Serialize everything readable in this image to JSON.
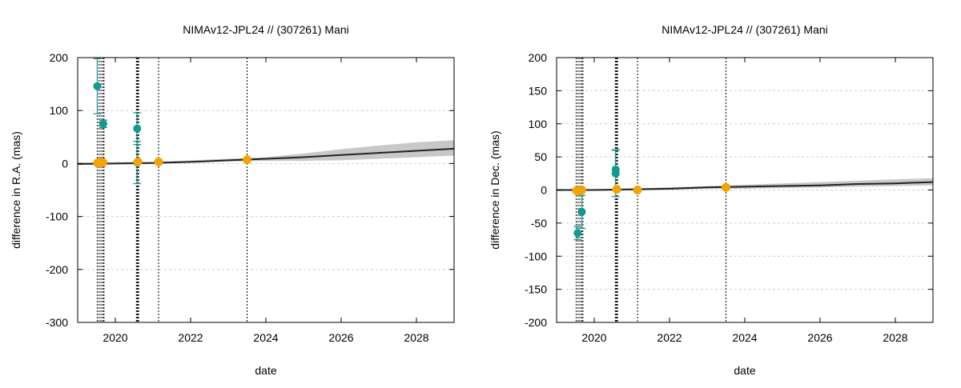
{
  "chart_data": [
    {
      "type": "scatter",
      "title": "NIMAv12-JPL24 // (307261) Mani",
      "xlabel": "date",
      "ylabel": "difference in R.A. (mas)",
      "xlim": [
        2019.0,
        2029.0
      ],
      "ylim": [
        -300,
        200
      ],
      "xticks": [
        2020,
        2022,
        2024,
        2026,
        2028
      ],
      "yticks": [
        -300,
        -200,
        -100,
        0,
        100,
        200
      ],
      "grid": true,
      "legend": "none",
      "colors": {
        "obs": "#14998f",
        "gaia": "#f5a300",
        "band": "#c8c8c8",
        "line": "#222222"
      },
      "vlines": [
        2019.52,
        2019.57,
        2019.62,
        2019.67,
        2019.7,
        2020.56,
        2020.58,
        2020.6,
        2020.62,
        2021.15,
        2023.5
      ],
      "band": [
        {
          "x": 2019.0,
          "lo": -2,
          "hi": 2
        },
        {
          "x": 2021.0,
          "lo": -1,
          "hi": 3
        },
        {
          "x": 2023.0,
          "lo": 4,
          "hi": 9
        },
        {
          "x": 2024.0,
          "lo": 5,
          "hi": 12
        },
        {
          "x": 2025.0,
          "lo": 5,
          "hi": 19
        },
        {
          "x": 2026.0,
          "lo": 6,
          "hi": 27
        },
        {
          "x": 2027.0,
          "lo": 9,
          "hi": 34
        },
        {
          "x": 2028.0,
          "lo": 12,
          "hi": 40
        },
        {
          "x": 2029.0,
          "lo": 15,
          "hi": 44
        }
      ],
      "line": [
        {
          "x": 2019.0,
          "y": -1
        },
        {
          "x": 2020.0,
          "y": 0
        },
        {
          "x": 2021.0,
          "y": 1
        },
        {
          "x": 2022.0,
          "y": 3
        },
        {
          "x": 2023.0,
          "y": 6
        },
        {
          "x": 2024.0,
          "y": 9
        },
        {
          "x": 2025.0,
          "y": 12
        },
        {
          "x": 2026.0,
          "y": 16
        },
        {
          "x": 2027.0,
          "y": 20
        },
        {
          "x": 2028.0,
          "y": 24
        },
        {
          "x": 2029.0,
          "y": 28
        }
      ],
      "observations": [
        {
          "x": 2019.52,
          "y": 146,
          "err": 52
        },
        {
          "x": 2019.68,
          "y": 75,
          "err": 7
        },
        {
          "x": 2020.58,
          "y": 66,
          "err": 30
        },
        {
          "x": 2020.58,
          "y": 2,
          "err": 40
        }
      ],
      "gaia_points": [
        {
          "x": 2019.53,
          "y": 1
        },
        {
          "x": 2019.57,
          "y": 2
        },
        {
          "x": 2019.62,
          "y": 2
        },
        {
          "x": 2019.67,
          "y": 2
        },
        {
          "x": 2020.6,
          "y": 3
        },
        {
          "x": 2021.15,
          "y": 3
        },
        {
          "x": 2023.5,
          "y": 7
        }
      ]
    },
    {
      "type": "scatter",
      "title": "NIMAv12-JPL24 // (307261) Mani",
      "xlabel": "date",
      "ylabel": "difference in Dec. (mas)",
      "xlim": [
        2019.0,
        2029.0
      ],
      "ylim": [
        -200,
        200
      ],
      "xticks": [
        2020,
        2022,
        2024,
        2026,
        2028
      ],
      "yticks": [
        -200,
        -150,
        -100,
        -50,
        0,
        50,
        100,
        150,
        200
      ],
      "grid": true,
      "legend": "none",
      "colors": {
        "obs": "#14998f",
        "gaia": "#f5a300",
        "band": "#c8c8c8",
        "line": "#222222"
      },
      "vlines": [
        2019.52,
        2019.57,
        2019.62,
        2019.67,
        2019.7,
        2020.56,
        2020.58,
        2020.6,
        2020.62,
        2021.15,
        2023.5
      ],
      "band": [
        {
          "x": 2019.0,
          "lo": -1,
          "hi": 1
        },
        {
          "x": 2021.0,
          "lo": -1,
          "hi": 2
        },
        {
          "x": 2023.0,
          "lo": 2,
          "hi": 6
        },
        {
          "x": 2024.0,
          "lo": 2,
          "hi": 8
        },
        {
          "x": 2025.0,
          "lo": 3,
          "hi": 10
        },
        {
          "x": 2026.0,
          "lo": 4,
          "hi": 12
        },
        {
          "x": 2027.0,
          "lo": 5,
          "hi": 14
        },
        {
          "x": 2028.0,
          "lo": 6,
          "hi": 16
        },
        {
          "x": 2029.0,
          "lo": 7,
          "hi": 18
        }
      ],
      "line": [
        {
          "x": 2019.0,
          "y": 0
        },
        {
          "x": 2020.0,
          "y": 0
        },
        {
          "x": 2021.0,
          "y": 1
        },
        {
          "x": 2022.0,
          "y": 2
        },
        {
          "x": 2023.0,
          "y": 4
        },
        {
          "x": 2024.0,
          "y": 5
        },
        {
          "x": 2025.0,
          "y": 6
        },
        {
          "x": 2026.0,
          "y": 7
        },
        {
          "x": 2027.0,
          "y": 9
        },
        {
          "x": 2028.0,
          "y": 10
        },
        {
          "x": 2029.0,
          "y": 12
        }
      ],
      "observations": [
        {
          "x": 2019.56,
          "y": -65,
          "err": 10
        },
        {
          "x": 2019.67,
          "y": -33,
          "err": 25
        },
        {
          "x": 2020.57,
          "y": 25,
          "err": 35
        },
        {
          "x": 2020.57,
          "y": 31,
          "err": 30
        }
      ],
      "gaia_points": [
        {
          "x": 2019.53,
          "y": -1
        },
        {
          "x": 2019.57,
          "y": -1
        },
        {
          "x": 2019.62,
          "y": -1
        },
        {
          "x": 2019.67,
          "y": 0
        },
        {
          "x": 2020.6,
          "y": 1
        },
        {
          "x": 2021.15,
          "y": 0
        },
        {
          "x": 2023.5,
          "y": 4
        }
      ]
    }
  ]
}
